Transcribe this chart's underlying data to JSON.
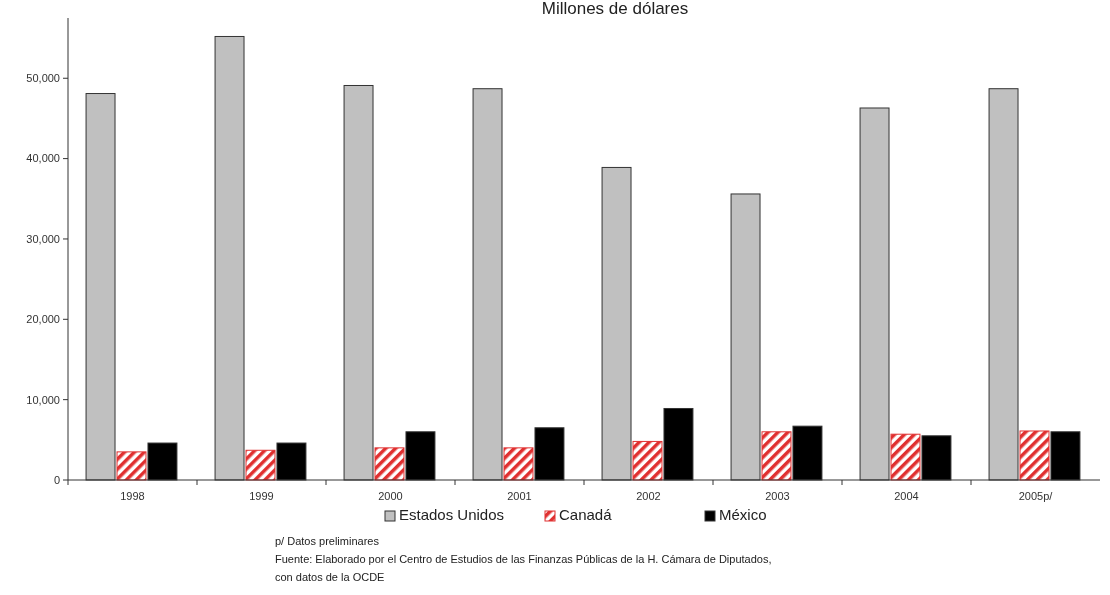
{
  "chart_data": {
    "type": "bar",
    "title": "Millones de dólares",
    "categories": [
      "1998",
      "1999",
      "2000",
      "2001",
      "2002",
      "2003",
      "2004",
      "2005p/"
    ],
    "series": [
      {
        "name": "Estados Unidos",
        "color": "#c0c0c0",
        "values": [
          48100,
          55200,
          49100,
          48700,
          38900,
          35600,
          46300,
          48700
        ]
      },
      {
        "name": "Canadá",
        "color": "#e03030",
        "values": [
          3500,
          3700,
          4000,
          4000,
          4800,
          6000,
          5700,
          6100
        ]
      },
      {
        "name": "México",
        "color": "#000000",
        "values": [
          4600,
          4600,
          6000,
          6500,
          8900,
          6700,
          5500,
          6000
        ]
      }
    ],
    "ylim": [
      0,
      57500
    ],
    "yticks": [
      {
        "value": 0,
        "label": "0"
      },
      {
        "value": 10000,
        "label": "10,000"
      },
      {
        "value": 20000,
        "label": "20,000"
      },
      {
        "value": 30000,
        "label": "30,000"
      },
      {
        "value": 40000,
        "label": "40,000"
      },
      {
        "value": 50000,
        "label": "50,000"
      }
    ],
    "grid": false,
    "legend": "bottom",
    "annotations": [
      "p/ Datos preliminares",
      "Fuente: Elaborado por el Centro de Estudios de las Finanzas Públicas de la H. Cámara de Diputados,",
      "con datos de la OCDE"
    ]
  }
}
